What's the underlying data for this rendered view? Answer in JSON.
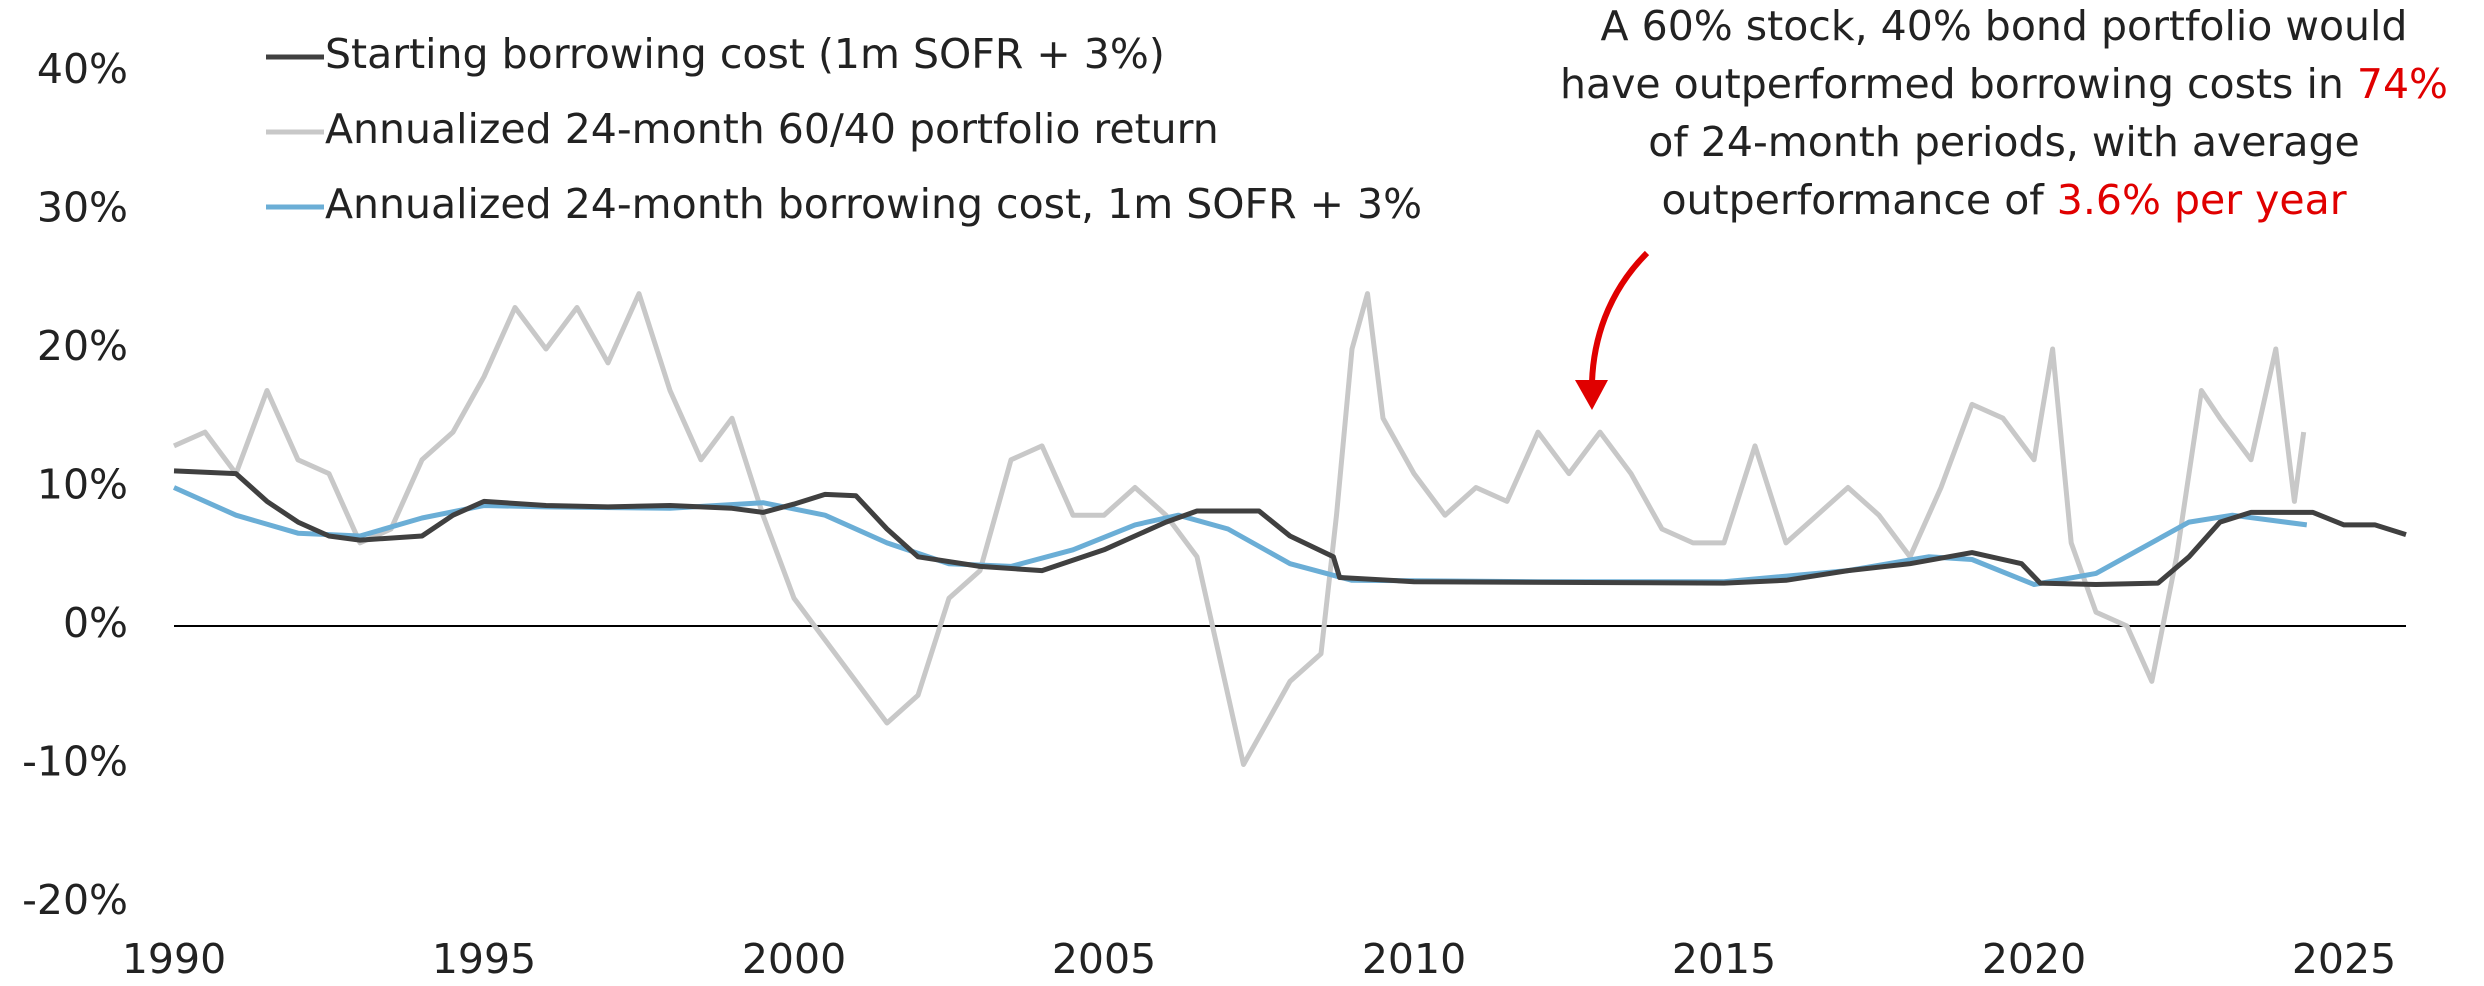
{
  "chart_data": {
    "type": "line",
    "xlim": [
      1990,
      2026
    ],
    "xticks": [
      1990,
      1995,
      2000,
      2005,
      2010,
      2015,
      2020,
      2025
    ],
    "ylim": [
      -20,
      40
    ],
    "yticks": [
      {
        "value": -20,
        "label": "-20%"
      },
      {
        "value": -10,
        "label": "-10%"
      },
      {
        "value": 0,
        "label": "0%"
      },
      {
        "value": 10,
        "label": "10%"
      },
      {
        "value": 20,
        "label": "20%"
      },
      {
        "value": 30,
        "label": "30%"
      },
      {
        "value": 40,
        "label": "40%"
      }
    ],
    "legend": "upper left",
    "series": [
      {
        "name": "Starting borrowing cost (1m SOFR + 3%)",
        "color": "#404040",
        "x": [
          1990,
          1991,
          1991.5,
          1992,
          1992.5,
          1993,
          1994,
          1994.5,
          1995,
          1996,
          1997,
          1998,
          1999,
          1999.5,
          2000,
          2000.5,
          2001,
          2001.5,
          2002,
          2003,
          2004,
          2005,
          2006,
          2006.5,
          2007.5,
          2008,
          2008.7,
          2008.8,
          2010,
          2015,
          2016,
          2017,
          2018,
          2019,
          2019.8,
          2020.1,
          2021,
          2022,
          2022.5,
          2023,
          2023.5,
          2024.5,
          2025,
          2025.5,
          2026
        ],
        "values": [
          11.2,
          11,
          9,
          7.5,
          6.5,
          6.2,
          6.5,
          8,
          9,
          8.7,
          8.6,
          8.7,
          8.5,
          8.2,
          8.8,
          9.5,
          9.4,
          7,
          5,
          4.3,
          4,
          5.5,
          7.5,
          8.3,
          8.3,
          6.5,
          5,
          3.5,
          3.2,
          3.1,
          3.3,
          4,
          4.5,
          5.3,
          4.5,
          3.1,
          3.0,
          3.1,
          5,
          7.5,
          8.2,
          8.2,
          7.3,
          7.3,
          6.6
        ]
      },
      {
        "name": "Annualized 24-month 60/40 portfolio return",
        "color": "#c8c8c8",
        "x": [
          1990,
          1990.5,
          1991,
          1991.5,
          1992,
          1992.5,
          1993,
          1993.5,
          1994,
          1994.5,
          1995,
          1995.5,
          1996,
          1996.5,
          1997,
          1997.5,
          1998,
          1998.5,
          1999,
          1999.5,
          2000,
          2000.5,
          2001,
          2001.5,
          2002,
          2002.5,
          2003,
          2003.5,
          2004,
          2004.5,
          2005,
          2005.5,
          2006,
          2006.5,
          2007,
          2007.25,
          2007.5,
          2008,
          2008.5,
          2008.75,
          2009,
          2009.25,
          2009.5,
          2010,
          2010.5,
          2011,
          2011.5,
          2012,
          2012.5,
          2013,
          2013.5,
          2014,
          2014.5,
          2015,
          2015.5,
          2016,
          2016.5,
          2017,
          2017.5,
          2018,
          2018.5,
          2019,
          2019.5,
          2020,
          2020.3,
          2020.6,
          2021,
          2021.5,
          2021.9,
          2022.3,
          2022.7,
          2023,
          2023.5,
          2023.9,
          2024.2,
          2024.35
        ],
        "values": [
          13,
          14,
          11,
          17,
          12,
          11,
          6,
          7,
          12,
          14,
          18,
          23,
          20,
          23,
          19,
          24,
          17,
          12,
          15,
          8,
          2,
          -1,
          -4,
          -7,
          -5,
          2,
          4,
          12,
          13,
          8,
          8,
          10,
          8,
          5,
          -5,
          -10,
          -8,
          -4,
          -2,
          8,
          20,
          24,
          15,
          11,
          8,
          10,
          9,
          14,
          11,
          14,
          11,
          7,
          6,
          6,
          13,
          6,
          8,
          10,
          8,
          5,
          10,
          16,
          15,
          12,
          20,
          6,
          1,
          0,
          -4,
          5,
          17,
          15,
          12,
          20,
          9,
          14
        ]
      },
      {
        "name": "Annualized 24-month borrowing cost, 1m SOFR + 3%",
        "color": "#6baed6",
        "x": [
          1990,
          1991,
          1992,
          1993,
          1994,
          1995,
          1996,
          1998,
          1999.5,
          2000.5,
          2001.5,
          2002.5,
          2003.5,
          2004.5,
          2005.5,
          2006.2,
          2007,
          2008,
          2009,
          2012,
          2015,
          2017,
          2018.3,
          2019,
          2020,
          2021,
          2022.5,
          2023.2,
          2024.4
        ],
        "values": [
          10,
          8,
          6.7,
          6.5,
          7.8,
          8.7,
          8.6,
          8.5,
          8.9,
          8,
          6,
          4.5,
          4.3,
          5.5,
          7.3,
          8,
          7,
          4.5,
          3.3,
          3.2,
          3.2,
          4,
          5,
          4.8,
          3,
          3.8,
          7.5,
          8,
          7.3
        ]
      }
    ],
    "annotation": {
      "color": "#e00000",
      "lines": [
        [
          {
            "text": "A 60% stock, 40% bond portfolio would"
          }
        ],
        [
          {
            "text": "have outperformed borrowing costs in "
          },
          {
            "text": "74%",
            "highlight": true
          }
        ],
        [
          {
            "text": "of 24-month periods, with average"
          }
        ],
        [
          {
            "text": "outperformance of "
          },
          {
            "text": "3.6% per year",
            "highlight": true
          }
        ]
      ]
    }
  }
}
